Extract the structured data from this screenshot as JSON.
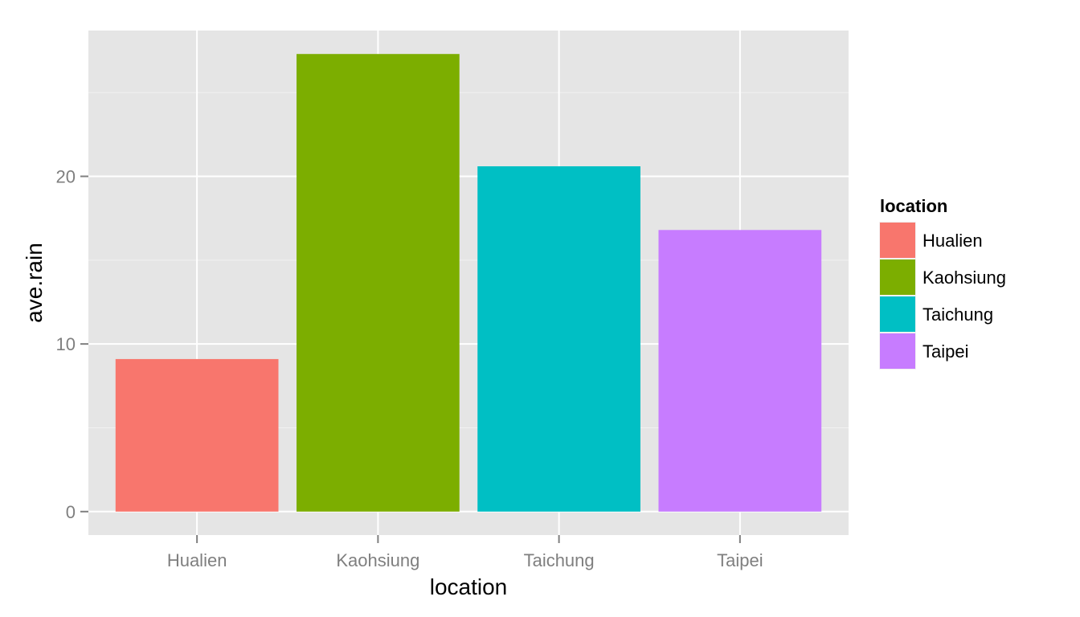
{
  "chart_data": {
    "type": "bar",
    "categories": [
      "Hualien",
      "Kaohsiung",
      "Taichung",
      "Taipei"
    ],
    "values": [
      9.1,
      27.3,
      20.6,
      16.8
    ],
    "colors": [
      "#F8766D",
      "#7CAE00",
      "#00BFC4",
      "#C77CFF"
    ],
    "xlabel": "location",
    "ylabel": "ave.rain",
    "ylim": [
      -1.4,
      28.7
    ],
    "yticks": [
      0,
      10,
      20
    ],
    "ytick_labels": [
      "0",
      "10",
      "20"
    ],
    "legend": {
      "title": "location",
      "entries": [
        "Hualien",
        "Kaohsiung",
        "Taichung",
        "Taipei"
      ],
      "placement": "right"
    },
    "grid": true,
    "background": "#E5E5E5"
  }
}
